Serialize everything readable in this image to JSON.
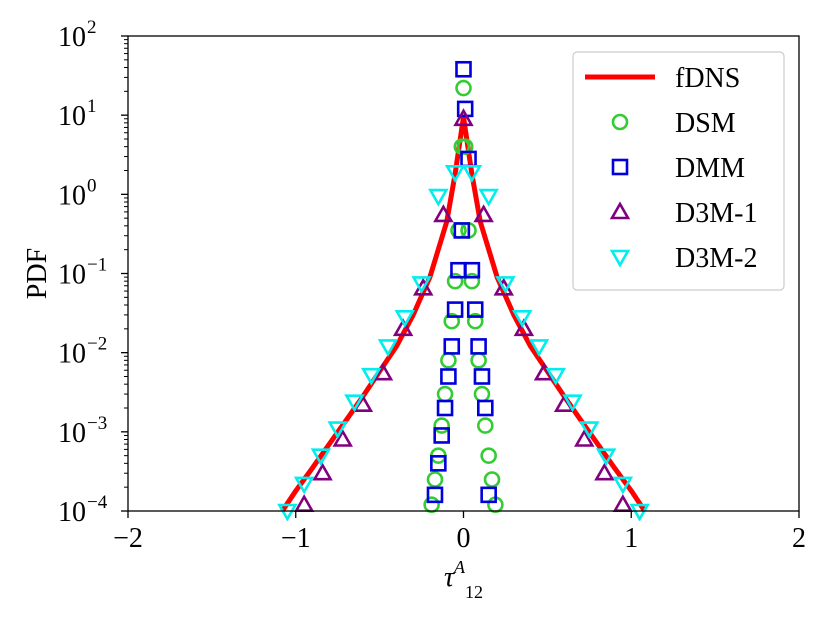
{
  "chart_data": {
    "type": "line",
    "xlabel": "τ",
    "xlabel_sup": "A",
    "xlabel_sub": "12",
    "ylabel": "PDF",
    "xlim": [
      -2,
      2
    ],
    "ylim": [
      0.0001,
      100
    ],
    "yscale": "log",
    "xticks": [
      -2,
      -1,
      0,
      1,
      2
    ],
    "xtick_labels": [
      "−2",
      "−1",
      "0",
      "1",
      "2"
    ],
    "yticks": [
      0.0001,
      0.001,
      0.01,
      0.1,
      1,
      10,
      100
    ],
    "ytick_base": "10",
    "ytick_exponents": [
      "−4",
      "−3",
      "−2",
      "−1",
      "0",
      "1",
      "2"
    ],
    "grid": false,
    "legend_position": "top-right",
    "series": [
      {
        "name": "fDNS",
        "style": "line",
        "color": "#ff0000",
        "x": [
          -1.08,
          -1.0,
          -0.9,
          -0.8,
          -0.7,
          -0.6,
          -0.5,
          -0.4,
          -0.3,
          -0.2,
          -0.1,
          -0.05,
          0.0,
          0.05,
          0.1,
          0.2,
          0.3,
          0.4,
          0.5,
          0.6,
          0.7,
          0.8,
          0.9,
          1.0,
          1.08
        ],
        "y": [
          0.0001,
          0.00018,
          0.00035,
          0.0007,
          0.0014,
          0.0028,
          0.0058,
          0.012,
          0.03,
          0.09,
          0.45,
          1.8,
          9.5,
          1.8,
          0.45,
          0.09,
          0.03,
          0.012,
          0.0058,
          0.0028,
          0.0014,
          0.0007,
          0.00035,
          0.00018,
          0.0001
        ]
      },
      {
        "name": "DSM",
        "style": "marker",
        "marker": "circle",
        "color": "#33cc33",
        "x": [
          -0.19,
          -0.17,
          -0.15,
          -0.13,
          -0.11,
          -0.09,
          -0.07,
          -0.05,
          -0.03,
          -0.01,
          0.0,
          0.01,
          0.03,
          0.05,
          0.07,
          0.09,
          0.11,
          0.13,
          0.15,
          0.17,
          0.19
        ],
        "y": [
          0.00012,
          0.00025,
          0.0005,
          0.0012,
          0.003,
          0.008,
          0.025,
          0.08,
          0.35,
          4,
          22,
          4,
          0.35,
          0.08,
          0.025,
          0.008,
          0.003,
          0.0012,
          0.0005,
          0.00025,
          0.00012
        ]
      },
      {
        "name": "DMM",
        "style": "marker",
        "marker": "square",
        "color": "#0000dd",
        "x": [
          -0.17,
          -0.15,
          -0.13,
          -0.11,
          -0.09,
          -0.07,
          -0.05,
          -0.03,
          -0.01,
          0.0,
          0.01,
          0.03,
          0.05,
          0.07,
          0.09,
          0.11,
          0.13,
          0.15
        ],
        "y": [
          0.00016,
          0.0004,
          0.0009,
          0.002,
          0.005,
          0.012,
          0.035,
          0.11,
          0.35,
          38,
          12,
          2.8,
          0.11,
          0.035,
          0.012,
          0.005,
          0.002,
          0.00016
        ]
      },
      {
        "name": "D3M-1",
        "style": "marker",
        "marker": "triangle-up",
        "color": "#800080",
        "x": [
          -0.95,
          -0.84,
          -0.72,
          -0.6,
          -0.48,
          -0.36,
          -0.24,
          -0.12,
          0.0,
          0.12,
          0.24,
          0.36,
          0.48,
          0.6,
          0.72,
          0.84,
          0.95
        ],
        "y": [
          0.00012,
          0.0003,
          0.0008,
          0.0022,
          0.0055,
          0.02,
          0.065,
          0.55,
          9,
          0.55,
          0.065,
          0.02,
          0.0055,
          0.0022,
          0.0008,
          0.0003,
          0.00012
        ]
      },
      {
        "name": "D3M-2",
        "style": "marker",
        "marker": "triangle-down",
        "color": "#00eeee",
        "x": [
          -1.05,
          -0.95,
          -0.85,
          -0.75,
          -0.65,
          -0.55,
          -0.45,
          -0.35,
          -0.25,
          -0.15,
          -0.05,
          0.05,
          0.15,
          0.25,
          0.35,
          0.45,
          0.55,
          0.65,
          0.75,
          0.85,
          0.95,
          1.05
        ],
        "y": [
          0.0001,
          0.00022,
          0.0005,
          0.0011,
          0.0024,
          0.0052,
          0.012,
          0.028,
          0.075,
          0.95,
          1.9,
          1.9,
          0.95,
          0.075,
          0.028,
          0.012,
          0.0052,
          0.0024,
          0.0011,
          0.0005,
          0.00022,
          0.0001
        ]
      }
    ]
  }
}
